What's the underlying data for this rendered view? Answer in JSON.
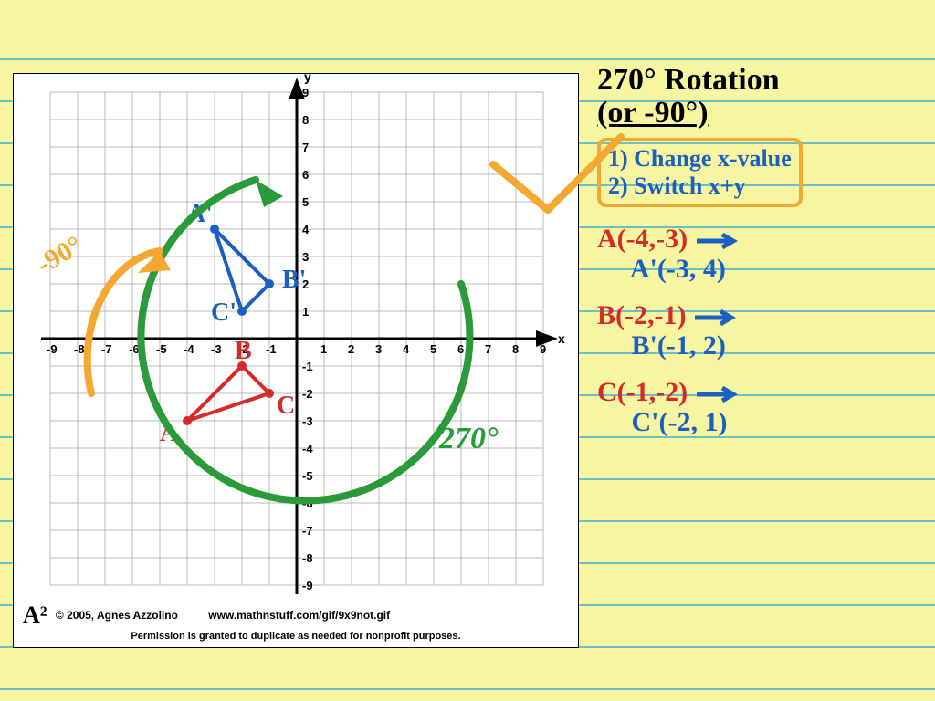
{
  "grid": {
    "xmin": -9,
    "xmax": 9,
    "ymin": -9,
    "ymax": 9,
    "x_label": "x",
    "y_label": "y",
    "grid_color": "#b8b8b8",
    "axis_color": "#000000",
    "tick_fontsize": 13,
    "x_ticks": [
      -9,
      -8,
      -7,
      -6,
      -5,
      -4,
      -3,
      -2,
      -1,
      1,
      2,
      3,
      4,
      5,
      6,
      7,
      8,
      9
    ],
    "y_ticks": [
      -9,
      -8,
      -7,
      -6,
      -5,
      -4,
      -3,
      -2,
      -1,
      1,
      2,
      3,
      4,
      5,
      6,
      7,
      8,
      9
    ]
  },
  "triangle_original": {
    "color": "#d42a2a",
    "label_color": "#d42a2a",
    "points": {
      "A": {
        "x": -4,
        "y": -3
      },
      "B": {
        "x": -2,
        "y": -1
      },
      "C": {
        "x": -1,
        "y": -2
      }
    },
    "labels": {
      "A": "A",
      "B": "B",
      "C": "C"
    }
  },
  "triangle_image": {
    "color": "#1b5fc2",
    "label_color": "#1b5fc2",
    "points": {
      "A'": {
        "x": -3,
        "y": 4
      },
      "B'": {
        "x": -1,
        "y": 2
      },
      "C'": {
        "x": -2,
        "y": 1
      }
    },
    "labels": {
      "A'": "A'",
      "B'": "B'",
      "C'": "C'"
    }
  },
  "rotation_arrows": {
    "cw_270": {
      "color": "#2a9b3a",
      "label": "270°"
    },
    "ccw_90": {
      "color": "#f2a831",
      "label": "-90°"
    }
  },
  "notes": {
    "title1": "270° Rotation",
    "title2": "(or -90°)",
    "rules": [
      "1) Change x-value",
      "2) Switch x+y"
    ],
    "coords": [
      {
        "orig_label": "A",
        "orig": "(-4,-3)",
        "img_label": "A'",
        "img": "(-3, 4)"
      },
      {
        "orig_label": "B",
        "orig": "(-2,-1)",
        "img_label": "B'",
        "img": "(-1, 2)"
      },
      {
        "orig_label": "C",
        "orig": "(-1,-2)",
        "img_label": "C'",
        "img": "(-2, 1)"
      }
    ]
  },
  "footer": {
    "logo": "A²",
    "copyright": "© 2005, Agnes Azzolino",
    "url": "www.mathnstuff.com/gif/9x9not.gif",
    "permission": "Permission is granted to duplicate as needed for nonprofit purposes."
  },
  "colors": {
    "paper": "#f7f5a0",
    "line": "#6bbfc8",
    "orange": "#f2a831",
    "green": "#2a9b3a",
    "red": "#d42a2a",
    "blue": "#1b5fc2",
    "black": "#000000"
  }
}
